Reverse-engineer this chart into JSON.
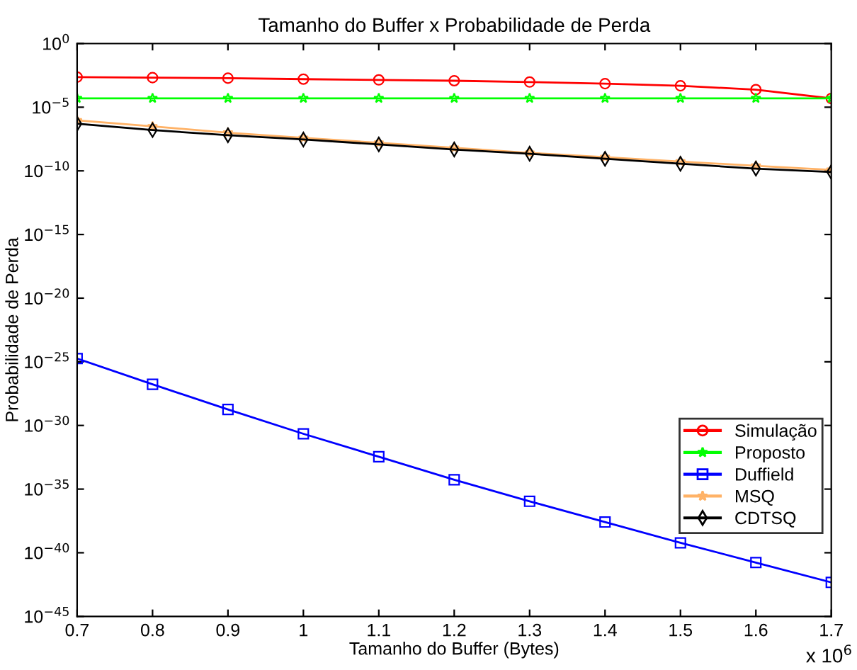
{
  "chart_data": {
    "type": "line",
    "title": "Tamanho do Buffer x Probabilidade de Perda",
    "xlabel": "Tamanho do Buffer (Bytes)",
    "ylabel": "Probabilidade de Perda",
    "x": [
      0.7,
      0.8,
      0.9,
      1,
      1.1,
      1.2,
      1.3,
      1.4,
      1.5,
      1.6,
      1.7
    ],
    "log": "y",
    "grid": false,
    "legend": "bottom right",
    "xlim": [
      0.7,
      1.7
    ],
    "xticks": [
      0.7,
      0.8,
      0.9,
      1,
      1.1,
      1.2,
      1.3,
      1.4,
      1.5,
      1.6,
      1.7
    ],
    "ylim": [
      1e-45,
      1
    ],
    "yticks": [
      {
        "value": 1e-45,
        "label": "10$^{−45}$"
      },
      {
        "value": 1e-40,
        "label": "10$^{−40}$"
      },
      {
        "value": 1e-35,
        "label": "10$^{−35}$"
      },
      {
        "value": 1e-30,
        "label": "10$^{−30}$"
      },
      {
        "value": 1e-25,
        "label": "10$^{−25}$"
      },
      {
        "value": 1e-20,
        "label": "10$^{−20}$"
      },
      {
        "value": 1e-15,
        "label": "10$^{−15}$"
      },
      {
        "value": 1e-10,
        "label": "10$^{−10}$"
      },
      {
        "value": 1e-05,
        "label": "10$^{−5}$"
      },
      {
        "value": 1,
        "label": "10$^{0}$"
      }
    ],
    "annotations": [
      "x 10$^{6}$"
    ],
    "series": [
      {
        "name": "Simulação",
        "color": "#ff0000",
        "marker": "circle",
        "values": [
          0.0023,
          0.0021,
          0.0019,
          0.0016,
          0.0014,
          0.0012,
          0.00095,
          0.00071,
          0.00048,
          0.00024,
          4.9e-05
        ]
      },
      {
        "name": "Proposto",
        "color": "#00ff00",
        "marker": "star",
        "values": [
          5e-05,
          5e-05,
          5e-05,
          5e-05,
          5e-05,
          5e-05,
          5e-05,
          5e-05,
          5e-05,
          5e-05,
          5e-05
        ]
      },
      {
        "name": "Duffield",
        "color": "#0000ff",
        "marker": "square",
        "values": [
          1.8e-25,
          1.7e-27,
          1.8e-29,
          2.2e-31,
          3.5e-33,
          5.4e-35,
          1.1e-36,
          2.6e-38,
          6e-40,
          1.7e-41,
          4.7e-43
        ]
      },
      {
        "name": "MSQ",
        "color": "#ffb266",
        "marker": "star",
        "values": [
          9.3e-07,
          3.1e-07,
          1e-07,
          3.9e-08,
          1.6e-08,
          6.5e-09,
          2.6e-09,
          1.2e-09,
          5.4e-10,
          2.5e-10,
          1.2e-10
        ]
      },
      {
        "name": "CDTSQ",
        "color": "#000000",
        "marker": "diamond",
        "values": [
          5e-07,
          1.6e-07,
          6.3e-08,
          2.9e-08,
          1.2e-08,
          4.8e-09,
          2.2e-09,
          8.9e-10,
          3.6e-10,
          1.5e-10,
          8.1e-11
        ]
      }
    ]
  }
}
